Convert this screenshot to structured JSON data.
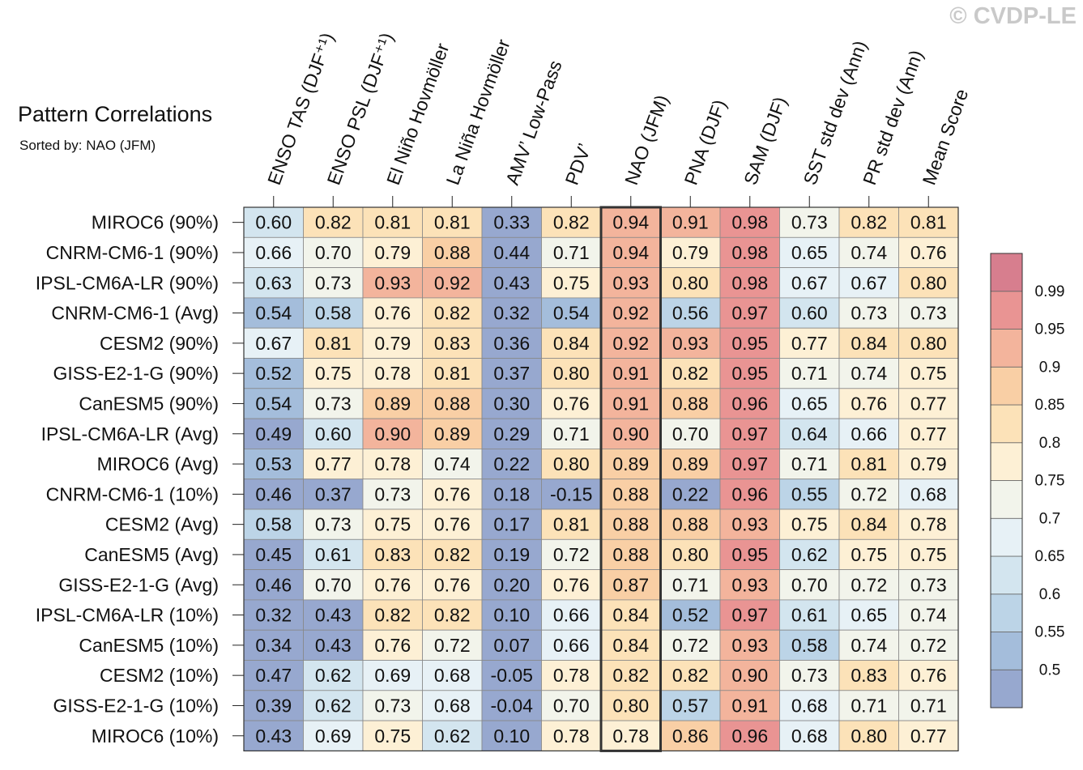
{
  "title": "Pattern Correlations",
  "subtitle": "Sorted by: NAO (JFM)",
  "watermark": "© CVDP-LE",
  "chart_data": {
    "type": "heatmap",
    "title": "Pattern Correlations",
    "subtitle": "Sorted by: NAO (JFM)",
    "highlight_column": "NAO (JFM)",
    "columns": [
      "ENSO TAS (DJF⁺¹)",
      "ENSO PSL (DJF⁺¹)",
      "El Niño Hovmöller",
      "La Niña Hovmöller",
      "AMV’ Low-Pass",
      "PDV’",
      "NAO (JFM)",
      "PNA (DJF)",
      "SAM (DJF)",
      "SST std dev (Ann)",
      "PR std dev (Ann)",
      "Mean Score"
    ],
    "rows": [
      "MIROC6 (90%)",
      "CNRM-CM6-1 (90%)",
      "IPSL-CM6A-LR (90%)",
      "CNRM-CM6-1 (Avg)",
      "CESM2 (90%)",
      "GISS-E2-1-G (90%)",
      "CanESM5 (90%)",
      "IPSL-CM6A-LR (Avg)",
      "MIROC6 (Avg)",
      "CNRM-CM6-1 (10%)",
      "CESM2 (Avg)",
      "CanESM5 (Avg)",
      "GISS-E2-1-G (Avg)",
      "IPSL-CM6A-LR (10%)",
      "CanESM5 (10%)",
      "CESM2 (10%)",
      "GISS-E2-1-G (10%)",
      "MIROC6 (10%)"
    ],
    "values": [
      [
        "0.60",
        "0.82",
        "0.81",
        "0.81",
        "0.33",
        "0.82",
        "0.94",
        "0.91",
        "0.98",
        "0.73",
        "0.82",
        "0.81"
      ],
      [
        "0.66",
        "0.70",
        "0.79",
        "0.88",
        "0.44",
        "0.71",
        "0.94",
        "0.79",
        "0.98",
        "0.65",
        "0.74",
        "0.76"
      ],
      [
        "0.63",
        "0.73",
        "0.93",
        "0.92",
        "0.43",
        "0.75",
        "0.93",
        "0.80",
        "0.98",
        "0.67",
        "0.67",
        "0.80"
      ],
      [
        "0.54",
        "0.58",
        "0.76",
        "0.82",
        "0.32",
        "0.54",
        "0.92",
        "0.56",
        "0.97",
        "0.60",
        "0.73",
        "0.73"
      ],
      [
        "0.67",
        "0.81",
        "0.79",
        "0.83",
        "0.36",
        "0.84",
        "0.92",
        "0.93",
        "0.95",
        "0.77",
        "0.84",
        "0.80"
      ],
      [
        "0.52",
        "0.75",
        "0.78",
        "0.81",
        "0.37",
        "0.80",
        "0.91",
        "0.82",
        "0.95",
        "0.71",
        "0.74",
        "0.75"
      ],
      [
        "0.54",
        "0.73",
        "0.89",
        "0.88",
        "0.30",
        "0.76",
        "0.91",
        "0.88",
        "0.96",
        "0.65",
        "0.76",
        "0.77"
      ],
      [
        "0.49",
        "0.60",
        "0.90",
        "0.89",
        "0.29",
        "0.71",
        "0.90",
        "0.70",
        "0.97",
        "0.64",
        "0.66",
        "0.77"
      ],
      [
        "0.53",
        "0.77",
        "0.78",
        "0.74",
        "0.22",
        "0.80",
        "0.89",
        "0.89",
        "0.97",
        "0.71",
        "0.81",
        "0.79"
      ],
      [
        "0.46",
        "0.37",
        "0.73",
        "0.76",
        "0.18",
        "-0.15",
        "0.88",
        "0.22",
        "0.96",
        "0.55",
        "0.72",
        "0.68"
      ],
      [
        "0.58",
        "0.73",
        "0.75",
        "0.76",
        "0.17",
        "0.81",
        "0.88",
        "0.88",
        "0.93",
        "0.75",
        "0.84",
        "0.78"
      ],
      [
        "0.45",
        "0.61",
        "0.83",
        "0.82",
        "0.19",
        "0.72",
        "0.88",
        "0.80",
        "0.95",
        "0.62",
        "0.75",
        "0.75"
      ],
      [
        "0.46",
        "0.70",
        "0.76",
        "0.76",
        "0.20",
        "0.76",
        "0.87",
        "0.71",
        "0.93",
        "0.70",
        "0.72",
        "0.73"
      ],
      [
        "0.32",
        "0.43",
        "0.82",
        "0.82",
        "0.10",
        "0.66",
        "0.84",
        "0.52",
        "0.97",
        "0.61",
        "0.65",
        "0.74"
      ],
      [
        "0.34",
        "0.43",
        "0.76",
        "0.72",
        "0.07",
        "0.66",
        "0.84",
        "0.72",
        "0.93",
        "0.58",
        "0.74",
        "0.72"
      ],
      [
        "0.47",
        "0.62",
        "0.69",
        "0.68",
        "-0.05",
        "0.78",
        "0.82",
        "0.82",
        "0.90",
        "0.73",
        "0.83",
        "0.76"
      ],
      [
        "0.39",
        "0.62",
        "0.73",
        "0.68",
        "-0.04",
        "0.70",
        "0.80",
        "0.57",
        "0.91",
        "0.68",
        "0.71",
        "0.71"
      ],
      [
        "0.43",
        "0.69",
        "0.75",
        "0.62",
        "0.10",
        "0.78",
        "0.78",
        "0.86",
        "0.96",
        "0.68",
        "0.80",
        "0.77"
      ]
    ],
    "colorbar": {
      "labels": [
        "0.99",
        "0.95",
        "0.9",
        "0.85",
        "0.8",
        "0.75",
        "0.7",
        "0.65",
        "0.6",
        "0.55",
        "0.5"
      ],
      "thresholds": [
        0.5,
        0.55,
        0.6,
        0.65,
        0.7,
        0.75,
        0.8,
        0.85,
        0.9,
        0.95,
        0.99
      ],
      "colors": [
        "#97a8cf",
        "#a4bddb",
        "#bcd4e7",
        "#d3e5ef",
        "#e7f1f6",
        "#f2f4eb",
        "#fdf0d5",
        "#fce2b8",
        "#f9cfa5",
        "#f3b49c",
        "#e99493",
        "#d77e8e"
      ]
    }
  }
}
